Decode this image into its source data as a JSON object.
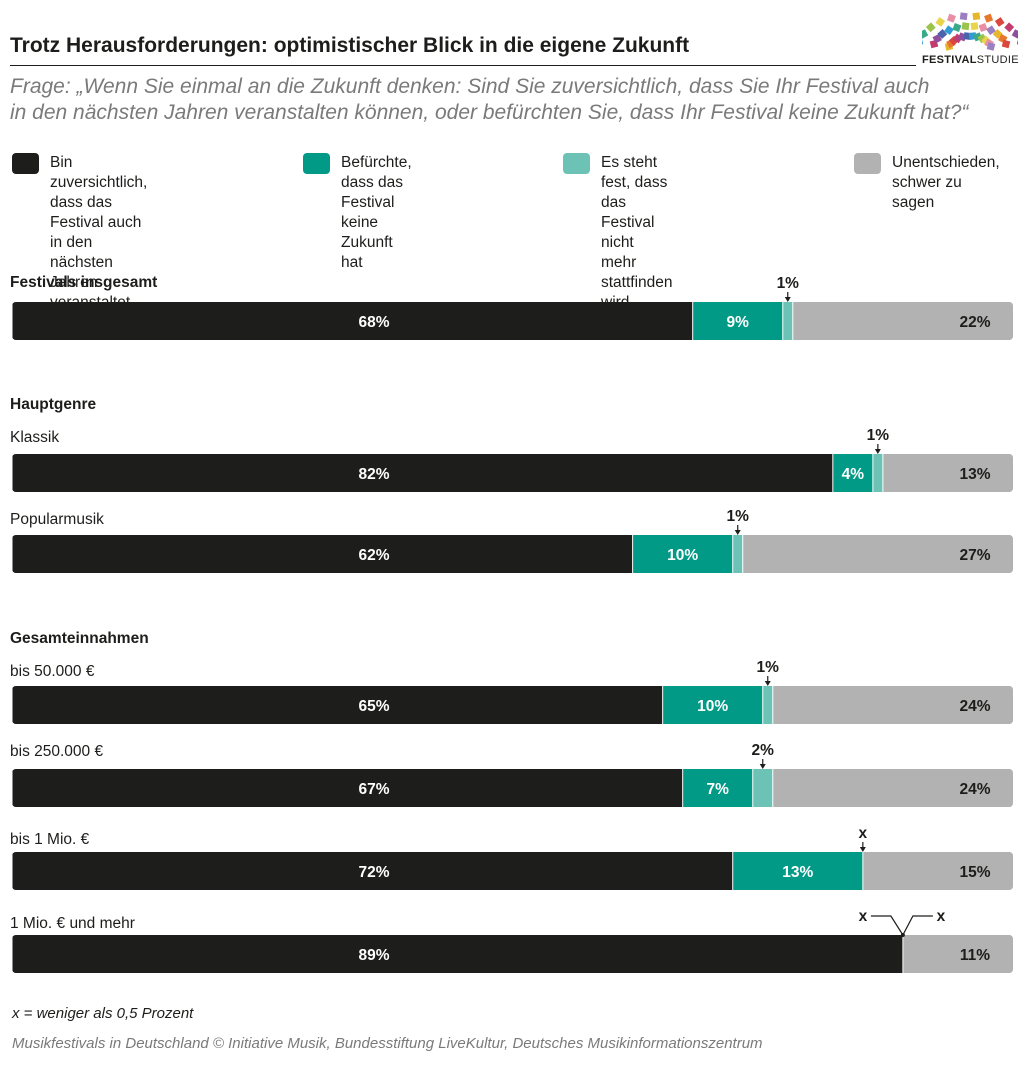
{
  "header": {
    "title": "Trotz Herausforderungen: optimistischer Blick in die eigene Zukunft",
    "question_line1": "Frage: „Wenn Sie einmal an die Zukunft denken: Sind Sie zuversichtlich, dass Sie Ihr Festival auch",
    "question_line2": "in den nächsten Jahren veranstalten können, oder befürchten Sie, dass Ihr Festival keine Zukunft hat?“"
  },
  "logo": {
    "bold": "FESTIVAL",
    "light": "STUDIE"
  },
  "legend": [
    {
      "label": "Bin zuversichtlich, dass das\nFestival auch in den nächsten\nJahren veranstaltet wird",
      "color": "#1d1d1b"
    },
    {
      "label": "Befürchte, dass das\nFestival keine Zukunft hat",
      "color": "#009a86"
    },
    {
      "label": "Es steht fest, dass das Festival\nnicht mehr stattfinden wird",
      "color": "#6cc3b5"
    },
    {
      "label": "Unentschieden,\nschwer zu sagen",
      "color": "#b2b2b2"
    }
  ],
  "chart_data": {
    "type": "bar",
    "orientation": "horizontal-stacked-100",
    "series": [
      {
        "name": "Bin zuversichtlich, dass das Festival auch in den nächsten Jahren veranstaltet wird",
        "color": "#1d1d1b"
      },
      {
        "name": "Befürchte, dass das Festival keine Zukunft hat",
        "color": "#009a86"
      },
      {
        "name": "Es steht fest, dass das Festival nicht mehr stattfinden wird",
        "color": "#6cc3b5"
      },
      {
        "name": "Unentschieden, schwer zu sagen",
        "color": "#b2b2b2"
      }
    ],
    "groups": [
      {
        "title": "Festivals insgesamt",
        "rows": [
          {
            "label": "",
            "values": [
              68,
              9,
              1,
              22
            ],
            "labels": [
              "68%",
              "9%",
              "1%",
              "22%"
            ]
          }
        ]
      },
      {
        "title": "Hauptgenre",
        "rows": [
          {
            "label": "Klassik",
            "values": [
              82,
              4,
              1,
              13
            ],
            "labels": [
              "82%",
              "4%",
              "1%",
              "13%"
            ]
          },
          {
            "label": "Popularmusik",
            "values": [
              62,
              10,
              1,
              27
            ],
            "labels": [
              "62%",
              "10%",
              "1%",
              "27%"
            ]
          }
        ]
      },
      {
        "title": "Gesamteinnahmen",
        "rows": [
          {
            "label": "bis 50.000 €",
            "values": [
              65,
              10,
              1,
              24
            ],
            "labels": [
              "65%",
              "10%",
              "1%",
              "24%"
            ]
          },
          {
            "label": "bis 250.000 €",
            "values": [
              67,
              7,
              2,
              24
            ],
            "labels": [
              "67%",
              "7%",
              "2%",
              "24%"
            ]
          },
          {
            "label": "bis 1 Mio. €",
            "values": [
              72,
              13,
              0,
              15
            ],
            "labels": [
              "72%",
              "13%",
              "x",
              "15%"
            ]
          },
          {
            "label": "1 Mio. € und mehr",
            "values": [
              89,
              0,
              0,
              11
            ],
            "labels": [
              "89%",
              "x",
              "x",
              "11%"
            ]
          }
        ]
      }
    ]
  },
  "footnote": "x = weniger als 0,5 Prozent",
  "source": "Musikfestivals in Deutschland © Initiative Musik, Bundesstiftung LiveKultur, Deutsches Musikinformationszentrum"
}
